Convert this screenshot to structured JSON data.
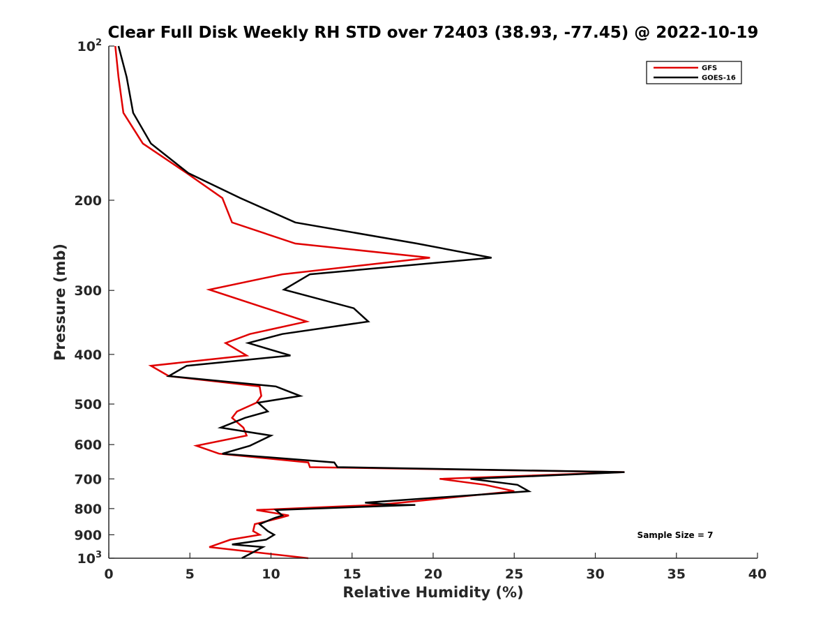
{
  "chart_data": {
    "type": "line",
    "title": "Clear Full Disk Weekly RH STD over 72403 (38.93, -77.45) @ 2022-10-19",
    "xlabel": "Relative Humidity (%)",
    "ylabel": "Pressure (mb)",
    "xlim": [
      0,
      40
    ],
    "ylim": [
      100,
      1000
    ],
    "y_scale": "log",
    "y_reversed": true,
    "grid": false,
    "legend_placement": "top-right",
    "x_ticks": [
      0,
      5,
      10,
      15,
      20,
      25,
      30,
      35,
      40
    ],
    "y_ticks": [
      {
        "value": 100,
        "label": "10",
        "exp": "2"
      },
      {
        "value": 200,
        "label": "200"
      },
      {
        "value": 300,
        "label": "300"
      },
      {
        "value": 400,
        "label": "400"
      },
      {
        "value": 500,
        "label": "500"
      },
      {
        "value": 600,
        "label": "600"
      },
      {
        "value": 700,
        "label": "700"
      },
      {
        "value": 800,
        "label": "800"
      },
      {
        "value": 900,
        "label": "900"
      },
      {
        "value": 1000,
        "label": "10",
        "exp": "3"
      }
    ],
    "annotation": "Sample Size = 7",
    "series": [
      {
        "name": "GFS",
        "color": "#e00000",
        "points": [
          [
            0.4,
            100
          ],
          [
            0.6,
            115
          ],
          [
            0.9,
            135
          ],
          [
            2.1,
            155
          ],
          [
            4.8,
            177
          ],
          [
            7.0,
            198
          ],
          [
            7.6,
            221
          ],
          [
            11.5,
            243
          ],
          [
            19.8,
            259
          ],
          [
            10.7,
            279
          ],
          [
            6.2,
            299
          ],
          [
            12.2,
            345
          ],
          [
            8.7,
            365
          ],
          [
            7.2,
            380
          ],
          [
            8.5,
            402
          ],
          [
            2.6,
            421
          ],
          [
            3.7,
            441
          ],
          [
            9.3,
            462
          ],
          [
            9.4,
            482
          ],
          [
            9.1,
            497
          ],
          [
            7.9,
            517
          ],
          [
            7.6,
            532
          ],
          [
            8.3,
            556
          ],
          [
            8.5,
            576
          ],
          [
            5.4,
            603
          ],
          [
            6.8,
            625
          ],
          [
            12.3,
            650
          ],
          [
            12.4,
            664
          ],
          [
            31.8,
            679
          ],
          [
            20.4,
            700
          ],
          [
            23.2,
            719
          ],
          [
            25.0,
            740
          ],
          [
            18.0,
            779
          ],
          [
            16.5,
            787
          ],
          [
            9.1,
            805
          ],
          [
            11.1,
            825
          ],
          [
            10.5,
            835
          ],
          [
            9.0,
            858
          ],
          [
            8.9,
            885
          ],
          [
            9.3,
            900
          ],
          [
            7.5,
            920
          ],
          [
            6.2,
            951
          ],
          [
            12.3,
            1000
          ]
        ]
      },
      {
        "name": "GOES-16",
        "color": "#000000",
        "points": [
          [
            0.6,
            100
          ],
          [
            1.1,
            115
          ],
          [
            1.5,
            135
          ],
          [
            2.6,
            155
          ],
          [
            4.9,
            177
          ],
          [
            8.1,
            198
          ],
          [
            11.5,
            221
          ],
          [
            19.0,
            243
          ],
          [
            23.6,
            259
          ],
          [
            12.4,
            279
          ],
          [
            10.8,
            299
          ],
          [
            15.1,
            325
          ],
          [
            16.0,
            345
          ],
          [
            10.7,
            365
          ],
          [
            8.6,
            380
          ],
          [
            11.2,
            402
          ],
          [
            4.8,
            421
          ],
          [
            3.7,
            441
          ],
          [
            10.3,
            462
          ],
          [
            11.8,
            482
          ],
          [
            9.2,
            497
          ],
          [
            9.8,
            517
          ],
          [
            8.4,
            532
          ],
          [
            6.9,
            556
          ],
          [
            10.0,
            576
          ],
          [
            8.7,
            603
          ],
          [
            7.0,
            625
          ],
          [
            13.9,
            650
          ],
          [
            14.1,
            664
          ],
          [
            31.8,
            679
          ],
          [
            22.3,
            700
          ],
          [
            25.2,
            719
          ],
          [
            25.9,
            740
          ],
          [
            15.8,
            779
          ],
          [
            17.5,
            787
          ],
          [
            18.9,
            787
          ],
          [
            10.3,
            805
          ],
          [
            10.7,
            825
          ],
          [
            10.2,
            835
          ],
          [
            9.3,
            858
          ],
          [
            9.8,
            885
          ],
          [
            10.2,
            900
          ],
          [
            9.7,
            920
          ],
          [
            7.6,
            940
          ],
          [
            9.5,
            951
          ],
          [
            8.2,
            1000
          ]
        ]
      }
    ]
  }
}
